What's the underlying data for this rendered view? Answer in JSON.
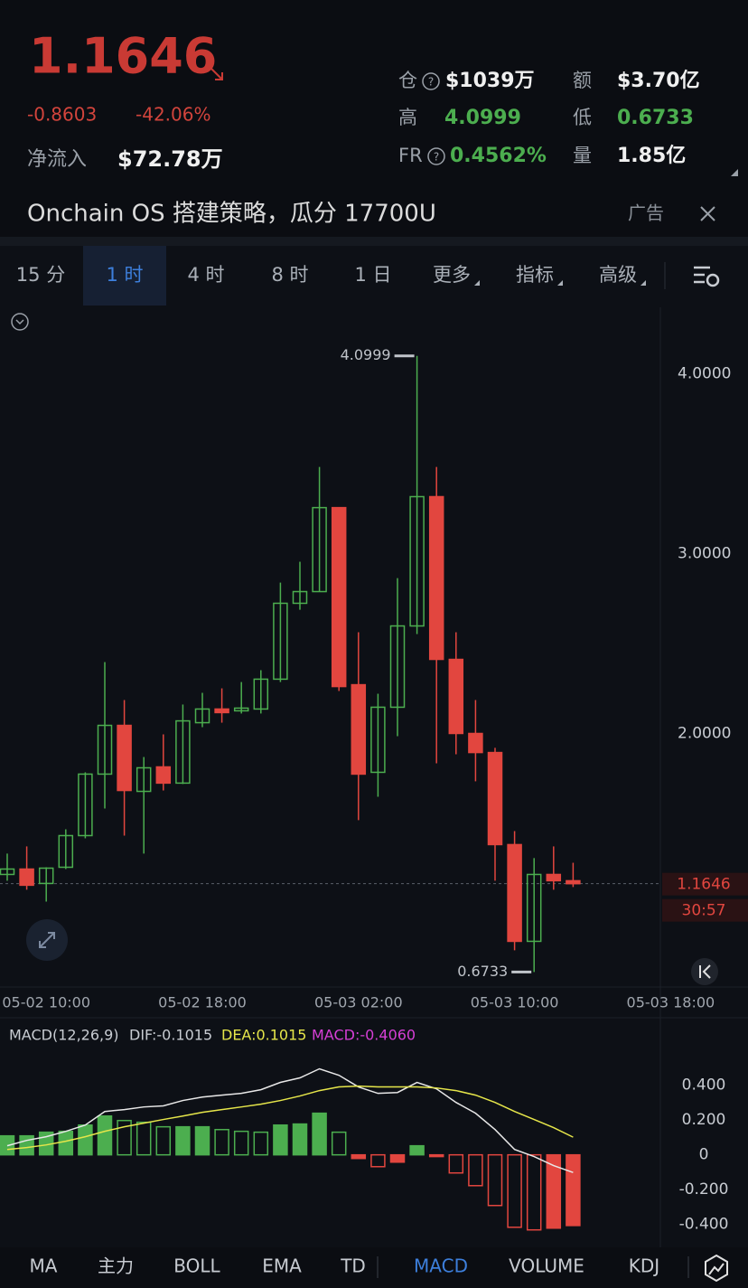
{
  "header": {
    "price": "1.1646",
    "change": "-0.8603",
    "change_pct": "-42.06%",
    "net_inflow_label": "净流入",
    "net_inflow": "$72.78万",
    "stats": [
      {
        "label": "仓",
        "value": "$1039万"
      },
      {
        "label": "额",
        "value": "$3.70亿"
      },
      {
        "label": "高",
        "value": "4.0999"
      },
      {
        "label": "低",
        "value": "0.6733"
      },
      {
        "label": "FR",
        "value": "0.4562%"
      },
      {
        "label": "量",
        "value": "1.85亿"
      }
    ]
  },
  "banner": {
    "text": "Onchain OS 搭建策略，瓜分 17700U",
    "ad": "广告"
  },
  "timeframes": [
    "15 分",
    "1 时",
    "4 时",
    "8 时",
    "1 日",
    "更多",
    "指标",
    "高级"
  ],
  "active_timeframe": "1 时",
  "indicators": [
    "MA",
    "主力",
    "BOLL",
    "EMA",
    "TD",
    "MACD",
    "VOLUME",
    "KDJ"
  ],
  "active_indicator": "MACD",
  "chart_data": [
    {
      "type": "candlestick",
      "x": [
        "05-02 08:00",
        "05-02 09:00",
        "05-02 10:00",
        "05-02 11:00",
        "05-02 12:00",
        "05-02 13:00",
        "05-02 14:00",
        "05-02 15:00",
        "05-02 16:00",
        "05-02 17:00",
        "05-02 18:00",
        "05-02 19:00",
        "05-02 20:00",
        "05-02 21:00",
        "05-02 22:00",
        "05-02 23:00",
        "05-03 00:00",
        "05-03 01:00",
        "05-03 02:00",
        "05-03 03:00",
        "05-03 04:00",
        "05-03 05:00",
        "05-03 06:00",
        "05-03 07:00",
        "05-03 08:00",
        "05-03 09:00",
        "05-03 10:00",
        "05-03 11:00",
        "05-03 12:00",
        "05-03 13:00"
      ],
      "open": [
        1.216,
        1.246,
        1.166,
        1.256,
        1.432,
        1.774,
        2.045,
        1.678,
        1.814,
        1.724,
        2.06,
        2.136,
        2.126,
        2.136,
        2.302,
        2.724,
        2.789,
        3.256,
        2.271,
        1.784,
        2.146,
        2.598,
        3.317,
        2.412,
        2.0,
        1.894,
        1.382,
        0.844,
        1.216,
        1.181
      ],
      "high": [
        1.332,
        1.372,
        1.256,
        1.467,
        1.784,
        2.397,
        2.186,
        1.869,
        1.995,
        2.161,
        2.226,
        2.251,
        2.286,
        2.352,
        2.839,
        2.955,
        3.482,
        3.256,
        2.563,
        2.221,
        2.864,
        4.0999,
        3.482,
        2.563,
        2.186,
        1.92,
        1.457,
        1.307,
        1.372,
        1.281
      ],
      "low": [
        1.181,
        1.131,
        1.065,
        1.246,
        1.417,
        1.583,
        1.432,
        1.332,
        1.683,
        1.719,
        2.035,
        2.06,
        2.111,
        2.111,
        2.286,
        2.688,
        2.789,
        2.236,
        1.518,
        1.648,
        1.985,
        2.553,
        1.834,
        1.884,
        1.734,
        1.181,
        0.794,
        0.6733,
        1.131,
        1.146
      ],
      "close": [
        1.246,
        1.156,
        1.251,
        1.432,
        1.774,
        2.045,
        1.683,
        1.809,
        1.724,
        2.07,
        2.136,
        2.116,
        2.141,
        2.302,
        2.724,
        2.789,
        3.256,
        2.261,
        1.774,
        2.146,
        2.598,
        3.317,
        2.412,
        2.0,
        1.894,
        1.382,
        0.844,
        1.216,
        1.181,
        1.1646
      ],
      "up_color": "#4cae4f",
      "down_color": "#e2463f",
      "ylim": [
        0.6,
        4.37
      ],
      "yticks": [
        {
          "value": 2,
          "label": "2.0000"
        },
        {
          "value": 3,
          "label": "3.0000"
        },
        {
          "value": 4,
          "label": "4.0000"
        }
      ],
      "xticks": [
        "05-02 10:00",
        "05-02 18:00",
        "05-03 02:00",
        "05-03 10:00",
        "05-03 18:00"
      ],
      "high_marker": 4.0999,
      "low_marker": 0.6733,
      "last_price": 1.1646,
      "countdown": "30:57"
    },
    {
      "type": "macd",
      "title": "MACD(12,26,9)",
      "x": [
        "05-02 08:00",
        "05-02 09:00",
        "05-02 10:00",
        "05-02 11:00",
        "05-02 12:00",
        "05-02 13:00",
        "05-02 14:00",
        "05-02 15:00",
        "05-02 16:00",
        "05-02 17:00",
        "05-02 18:00",
        "05-02 19:00",
        "05-02 20:00",
        "05-02 21:00",
        "05-02 22:00",
        "05-02 23:00",
        "05-03 00:00",
        "05-03 01:00",
        "05-03 02:00",
        "05-03 03:00",
        "05-03 04:00",
        "05-03 05:00",
        "05-03 06:00",
        "05-03 07:00",
        "05-03 08:00",
        "05-03 09:00",
        "05-03 10:00",
        "05-03 11:00",
        "05-03 12:00",
        "05-03 13:00"
      ],
      "series": [
        {
          "name": "DIF:-0.1015",
          "type": "line",
          "color": "#e8e8e8",
          "values": [
            0.052,
            0.083,
            0.104,
            0.135,
            0.171,
            0.249,
            0.26,
            0.275,
            0.281,
            0.312,
            0.332,
            0.343,
            0.353,
            0.374,
            0.416,
            0.442,
            0.494,
            0.457,
            0.39,
            0.353,
            0.358,
            0.416,
            0.379,
            0.301,
            0.239,
            0.145,
            0.031,
            -0.01,
            -0.062,
            -0.1015
          ]
        },
        {
          "name": "DEA:0.1015",
          "type": "line",
          "color": "#e6e64a",
          "values": [
            0.031,
            0.042,
            0.057,
            0.078,
            0.104,
            0.135,
            0.161,
            0.182,
            0.203,
            0.223,
            0.244,
            0.26,
            0.275,
            0.291,
            0.312,
            0.338,
            0.369,
            0.39,
            0.395,
            0.39,
            0.39,
            0.39,
            0.384,
            0.369,
            0.343,
            0.301,
            0.249,
            0.203,
            0.156,
            0.1015
          ]
        },
        {
          "name": "MACD:-0.4060",
          "type": "bar",
          "color": "#d63fd6",
          "up_color": "#4cae4f",
          "down_color": "#e2463f",
          "values": [
            0.109,
            0.109,
            0.13,
            0.135,
            0.171,
            0.223,
            0.197,
            0.187,
            0.161,
            0.161,
            0.161,
            0.145,
            0.135,
            0.13,
            0.171,
            0.177,
            0.239,
            0.13,
            -0.021,
            -0.068,
            -0.042,
            0.052,
            -0.01,
            -0.104,
            -0.177,
            -0.291,
            -0.416,
            -0.431,
            -0.421,
            -0.406
          ]
        }
      ],
      "ylim": [
        -0.5,
        0.59
      ],
      "yticks": [
        {
          "value": 0.4,
          "label": "0.400"
        },
        {
          "value": 0.2,
          "label": "0.200"
        },
        0,
        {
          "value": -0.2,
          "label": "-0.200"
        },
        {
          "value": -0.4,
          "label": "-0.400"
        }
      ]
    }
  ]
}
